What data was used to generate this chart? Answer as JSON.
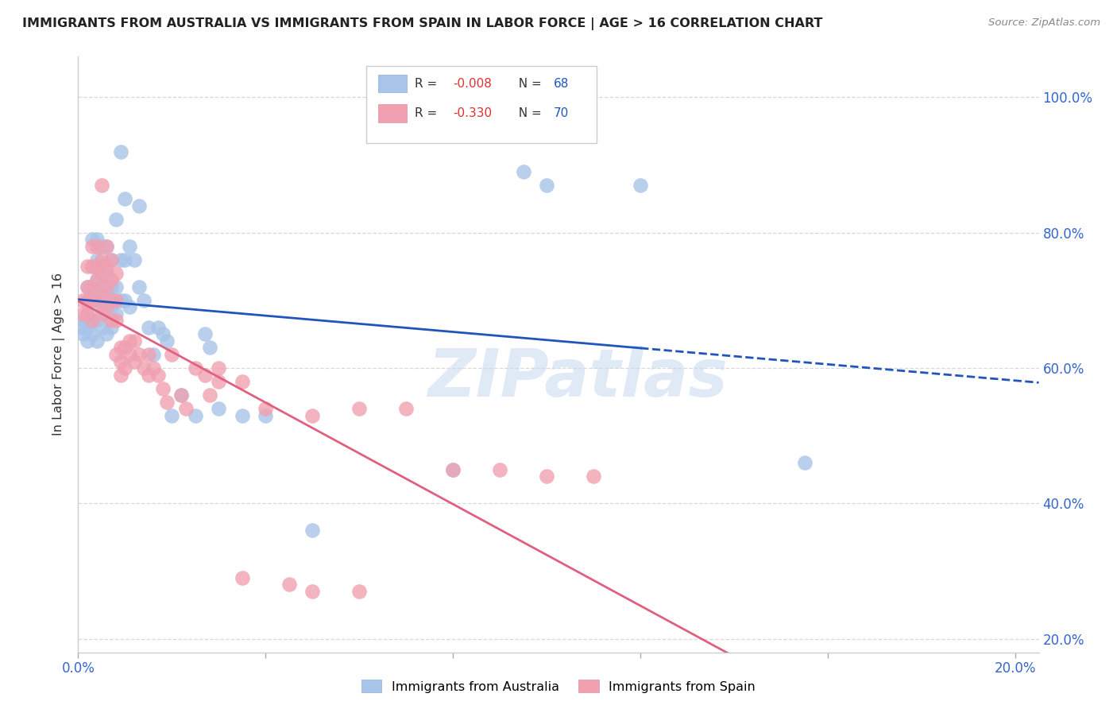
{
  "title": "IMMIGRANTS FROM AUSTRALIA VS IMMIGRANTS FROM SPAIN IN LABOR FORCE | AGE > 16 CORRELATION CHART",
  "source": "Source: ZipAtlas.com",
  "ylabel": "In Labor Force | Age > 16",
  "watermark": "ZIPatlas",
  "xlim": [
    0.0,
    0.205
  ],
  "ylim": [
    0.18,
    1.06
  ],
  "ytick_vals": [
    0.2,
    0.4,
    0.6,
    0.8,
    1.0
  ],
  "ytick_labels": [
    "20.0%",
    "40.0%",
    "60.0%",
    "80.0%",
    "100.0%"
  ],
  "xtick_vals": [
    0.0,
    0.04,
    0.08,
    0.12,
    0.16,
    0.2
  ],
  "xtick_labels": [
    "0.0%",
    "",
    "",
    "",
    "",
    "20.0%"
  ],
  "background_color": "#ffffff",
  "grid_color": "#d8d8d8",
  "australia_color": "#a8c4e8",
  "spain_color": "#f0a0b0",
  "reg_australia_color": "#2255bb",
  "reg_spain_color": "#e06080",
  "australia_R": -0.008,
  "australia_N": 68,
  "spain_R": -0.33,
  "spain_N": 70,
  "legend_R_color": "#e03030",
  "legend_N_color": "#2255bb",
  "legend_label_color": "#333333",
  "bottom_legend_labels": [
    "Immigrants from Australia",
    "Immigrants from Spain"
  ],
  "australia_points": [
    [
      0.001,
      0.67
    ],
    [
      0.001,
      0.66
    ],
    [
      0.001,
      0.65
    ],
    [
      0.002,
      0.72
    ],
    [
      0.002,
      0.7
    ],
    [
      0.002,
      0.68
    ],
    [
      0.002,
      0.66
    ],
    [
      0.002,
      0.64
    ],
    [
      0.003,
      0.79
    ],
    [
      0.003,
      0.75
    ],
    [
      0.003,
      0.72
    ],
    [
      0.003,
      0.7
    ],
    [
      0.003,
      0.67
    ],
    [
      0.003,
      0.65
    ],
    [
      0.004,
      0.79
    ],
    [
      0.004,
      0.76
    ],
    [
      0.004,
      0.73
    ],
    [
      0.004,
      0.7
    ],
    [
      0.004,
      0.67
    ],
    [
      0.004,
      0.64
    ],
    [
      0.005,
      0.78
    ],
    [
      0.005,
      0.75
    ],
    [
      0.005,
      0.72
    ],
    [
      0.005,
      0.69
    ],
    [
      0.005,
      0.66
    ],
    [
      0.006,
      0.78
    ],
    [
      0.006,
      0.74
    ],
    [
      0.006,
      0.71
    ],
    [
      0.006,
      0.68
    ],
    [
      0.006,
      0.65
    ],
    [
      0.007,
      0.76
    ],
    [
      0.007,
      0.72
    ],
    [
      0.007,
      0.69
    ],
    [
      0.007,
      0.66
    ],
    [
      0.008,
      0.82
    ],
    [
      0.008,
      0.72
    ],
    [
      0.008,
      0.68
    ],
    [
      0.009,
      0.92
    ],
    [
      0.009,
      0.76
    ],
    [
      0.009,
      0.7
    ],
    [
      0.01,
      0.85
    ],
    [
      0.01,
      0.76
    ],
    [
      0.01,
      0.7
    ],
    [
      0.011,
      0.78
    ],
    [
      0.011,
      0.69
    ],
    [
      0.012,
      0.76
    ],
    [
      0.013,
      0.84
    ],
    [
      0.013,
      0.72
    ],
    [
      0.014,
      0.7
    ],
    [
      0.015,
      0.66
    ],
    [
      0.016,
      0.62
    ],
    [
      0.017,
      0.66
    ],
    [
      0.018,
      0.65
    ],
    [
      0.019,
      0.64
    ],
    [
      0.02,
      0.53
    ],
    [
      0.022,
      0.56
    ],
    [
      0.025,
      0.53
    ],
    [
      0.027,
      0.65
    ],
    [
      0.028,
      0.63
    ],
    [
      0.03,
      0.54
    ],
    [
      0.035,
      0.53
    ],
    [
      0.04,
      0.53
    ],
    [
      0.05,
      0.36
    ],
    [
      0.08,
      0.45
    ],
    [
      0.095,
      0.89
    ],
    [
      0.1,
      0.87
    ],
    [
      0.12,
      0.87
    ],
    [
      0.155,
      0.46
    ]
  ],
  "spain_points": [
    [
      0.001,
      0.7
    ],
    [
      0.001,
      0.68
    ],
    [
      0.002,
      0.75
    ],
    [
      0.002,
      0.72
    ],
    [
      0.002,
      0.7
    ],
    [
      0.002,
      0.68
    ],
    [
      0.003,
      0.78
    ],
    [
      0.003,
      0.75
    ],
    [
      0.003,
      0.72
    ],
    [
      0.003,
      0.7
    ],
    [
      0.003,
      0.67
    ],
    [
      0.004,
      0.78
    ],
    [
      0.004,
      0.75
    ],
    [
      0.004,
      0.73
    ],
    [
      0.004,
      0.7
    ],
    [
      0.005,
      0.87
    ],
    [
      0.005,
      0.76
    ],
    [
      0.005,
      0.74
    ],
    [
      0.005,
      0.71
    ],
    [
      0.005,
      0.68
    ],
    [
      0.006,
      0.78
    ],
    [
      0.006,
      0.75
    ],
    [
      0.006,
      0.72
    ],
    [
      0.006,
      0.69
    ],
    [
      0.007,
      0.76
    ],
    [
      0.007,
      0.73
    ],
    [
      0.007,
      0.7
    ],
    [
      0.007,
      0.67
    ],
    [
      0.008,
      0.74
    ],
    [
      0.008,
      0.7
    ],
    [
      0.008,
      0.67
    ],
    [
      0.008,
      0.62
    ],
    [
      0.009,
      0.63
    ],
    [
      0.009,
      0.61
    ],
    [
      0.009,
      0.59
    ],
    [
      0.01,
      0.63
    ],
    [
      0.01,
      0.6
    ],
    [
      0.011,
      0.64
    ],
    [
      0.011,
      0.62
    ],
    [
      0.012,
      0.64
    ],
    [
      0.012,
      0.61
    ],
    [
      0.013,
      0.62
    ],
    [
      0.014,
      0.6
    ],
    [
      0.015,
      0.62
    ],
    [
      0.015,
      0.59
    ],
    [
      0.016,
      0.6
    ],
    [
      0.017,
      0.59
    ],
    [
      0.018,
      0.57
    ],
    [
      0.019,
      0.55
    ],
    [
      0.02,
      0.62
    ],
    [
      0.022,
      0.56
    ],
    [
      0.023,
      0.54
    ],
    [
      0.025,
      0.6
    ],
    [
      0.027,
      0.59
    ],
    [
      0.028,
      0.56
    ],
    [
      0.03,
      0.6
    ],
    [
      0.03,
      0.58
    ],
    [
      0.035,
      0.58
    ],
    [
      0.04,
      0.54
    ],
    [
      0.05,
      0.53
    ],
    [
      0.06,
      0.54
    ],
    [
      0.07,
      0.54
    ],
    [
      0.08,
      0.45
    ],
    [
      0.09,
      0.45
    ],
    [
      0.1,
      0.44
    ],
    [
      0.11,
      0.44
    ],
    [
      0.05,
      0.27
    ],
    [
      0.06,
      0.27
    ],
    [
      0.035,
      0.29
    ],
    [
      0.045,
      0.28
    ]
  ]
}
